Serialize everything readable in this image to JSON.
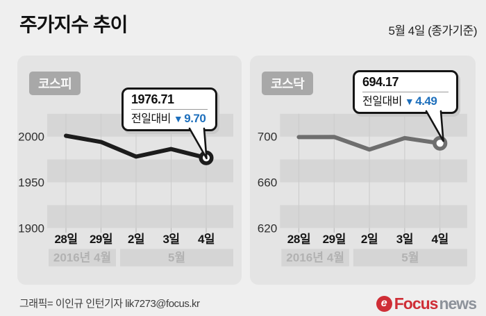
{
  "header": {
    "title": "주가지수 추이",
    "date_note": "5월 4일 (종가기준)"
  },
  "panels": [
    {
      "badge": "코스피",
      "callout": {
        "value": "1976.71",
        "label": "전일대비",
        "arrow": "▼",
        "change": "9.70"
      }
    },
    {
      "badge": "코스닥",
      "callout": {
        "value": "694.17",
        "label": "전일대비",
        "arrow": "▼",
        "change": "4.49"
      }
    }
  ],
  "chart_data": [
    {
      "type": "line",
      "title": "코스피",
      "x": [
        "28일",
        "29일",
        "2일",
        "3일",
        "4일"
      ],
      "values": [
        2000.93,
        1994.15,
        1978.15,
        1986.41,
        1976.71
      ],
      "y_ticks": [
        2000,
        1950,
        1900
      ],
      "ylim": [
        1895,
        2025
      ],
      "grid": "horizontal-stripes",
      "periods": [
        {
          "label": "2016년 4월"
        },
        {
          "label": "5월"
        }
      ],
      "line_color": "#1c1c1c",
      "last_close": 1976.71,
      "change": -9.7
    },
    {
      "type": "line",
      "title": "코스닥",
      "x": [
        "28일",
        "29일",
        "2일",
        "3일",
        "4일"
      ],
      "values": [
        699.6,
        699.7,
        688.7,
        698.7,
        694.17
      ],
      "y_ticks": [
        700,
        660,
        620
      ],
      "ylim": [
        616,
        720
      ],
      "grid": "horizontal-stripes",
      "periods": [
        {
          "label": "2016년 4월"
        },
        {
          "label": "5월"
        }
      ],
      "line_color": "#6e6e6e",
      "last_close": 694.17,
      "change": -4.49
    }
  ],
  "footer": {
    "credit": "그래픽= 이인규 인턴기자 lik7273@focus.kr"
  },
  "logo": {
    "icon_glyph": "e",
    "primary": "Focus",
    "secondary": "news"
  },
  "colors": {
    "accent_blue": "#1d6fbc",
    "logo_red": "#cf2e36",
    "logo_gray": "#8d929a",
    "panel_bg": "#e4e4e4",
    "stripe_dark": "#d6d6d6",
    "page_bg": "#efefef"
  }
}
